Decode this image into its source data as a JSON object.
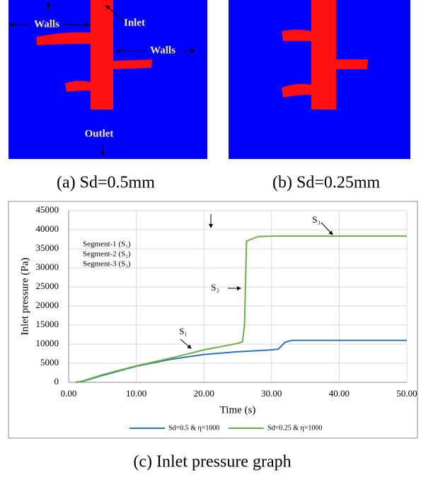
{
  "panels": [
    {
      "labels": [
        "Walls",
        "Inlet",
        "Walls",
        "Outlet"
      ],
      "caption": "(a)  Sd=0.5mm"
    },
    {
      "caption": "(b) Sd=0.25mm"
    }
  ],
  "chart_data": {
    "type": "line",
    "x_label": "Time (s)",
    "y_label": "Inlet pressure (Pa)",
    "xlim": [
      0,
      50
    ],
    "xticks": [
      {
        "value": 0,
        "label": "0.00"
      },
      {
        "value": 10,
        "label": "10.00"
      },
      {
        "value": 20,
        "label": "20.00"
      },
      {
        "value": 30,
        "label": "30.00"
      },
      {
        "value": 40,
        "label": "40.00"
      },
      {
        "value": 50,
        "label": "50.00"
      }
    ],
    "ylim": [
      0,
      45000
    ],
    "yticks": [
      0,
      5000,
      10000,
      15000,
      20000,
      25000,
      30000,
      35000,
      40000,
      45000
    ],
    "grid": true,
    "series": [
      {
        "name": "Sd=0.5 & η=1000",
        "color": "#2e75b6",
        "x": [
          1,
          2,
          5,
          10,
          15,
          20,
          25,
          30,
          31,
          32,
          33,
          40,
          50
        ],
        "values": [
          0,
          200,
          1800,
          4200,
          6000,
          7300,
          8000,
          8500,
          8700,
          10500,
          11000,
          11000,
          11000
        ]
      },
      {
        "name": "Sd=0.25 & η=1000",
        "color": "#70ad47",
        "x": [
          1,
          2,
          5,
          10,
          15,
          20,
          25,
          25.7,
          26,
          26.3,
          27,
          28,
          30,
          50
        ],
        "values": [
          0,
          300,
          2000,
          4300,
          6300,
          8500,
          10200,
          10600,
          15000,
          37000,
          37500,
          38200,
          38300,
          38300
        ]
      }
    ],
    "annotations": [
      "S₁",
      "S₂",
      "S₃"
    ],
    "notes": [
      "Segment-1 (S₁)",
      "Segment-2 (S₂)",
      "Segment-3 (S₃)"
    ]
  },
  "caption": "(c)  Inlet pressure graph"
}
